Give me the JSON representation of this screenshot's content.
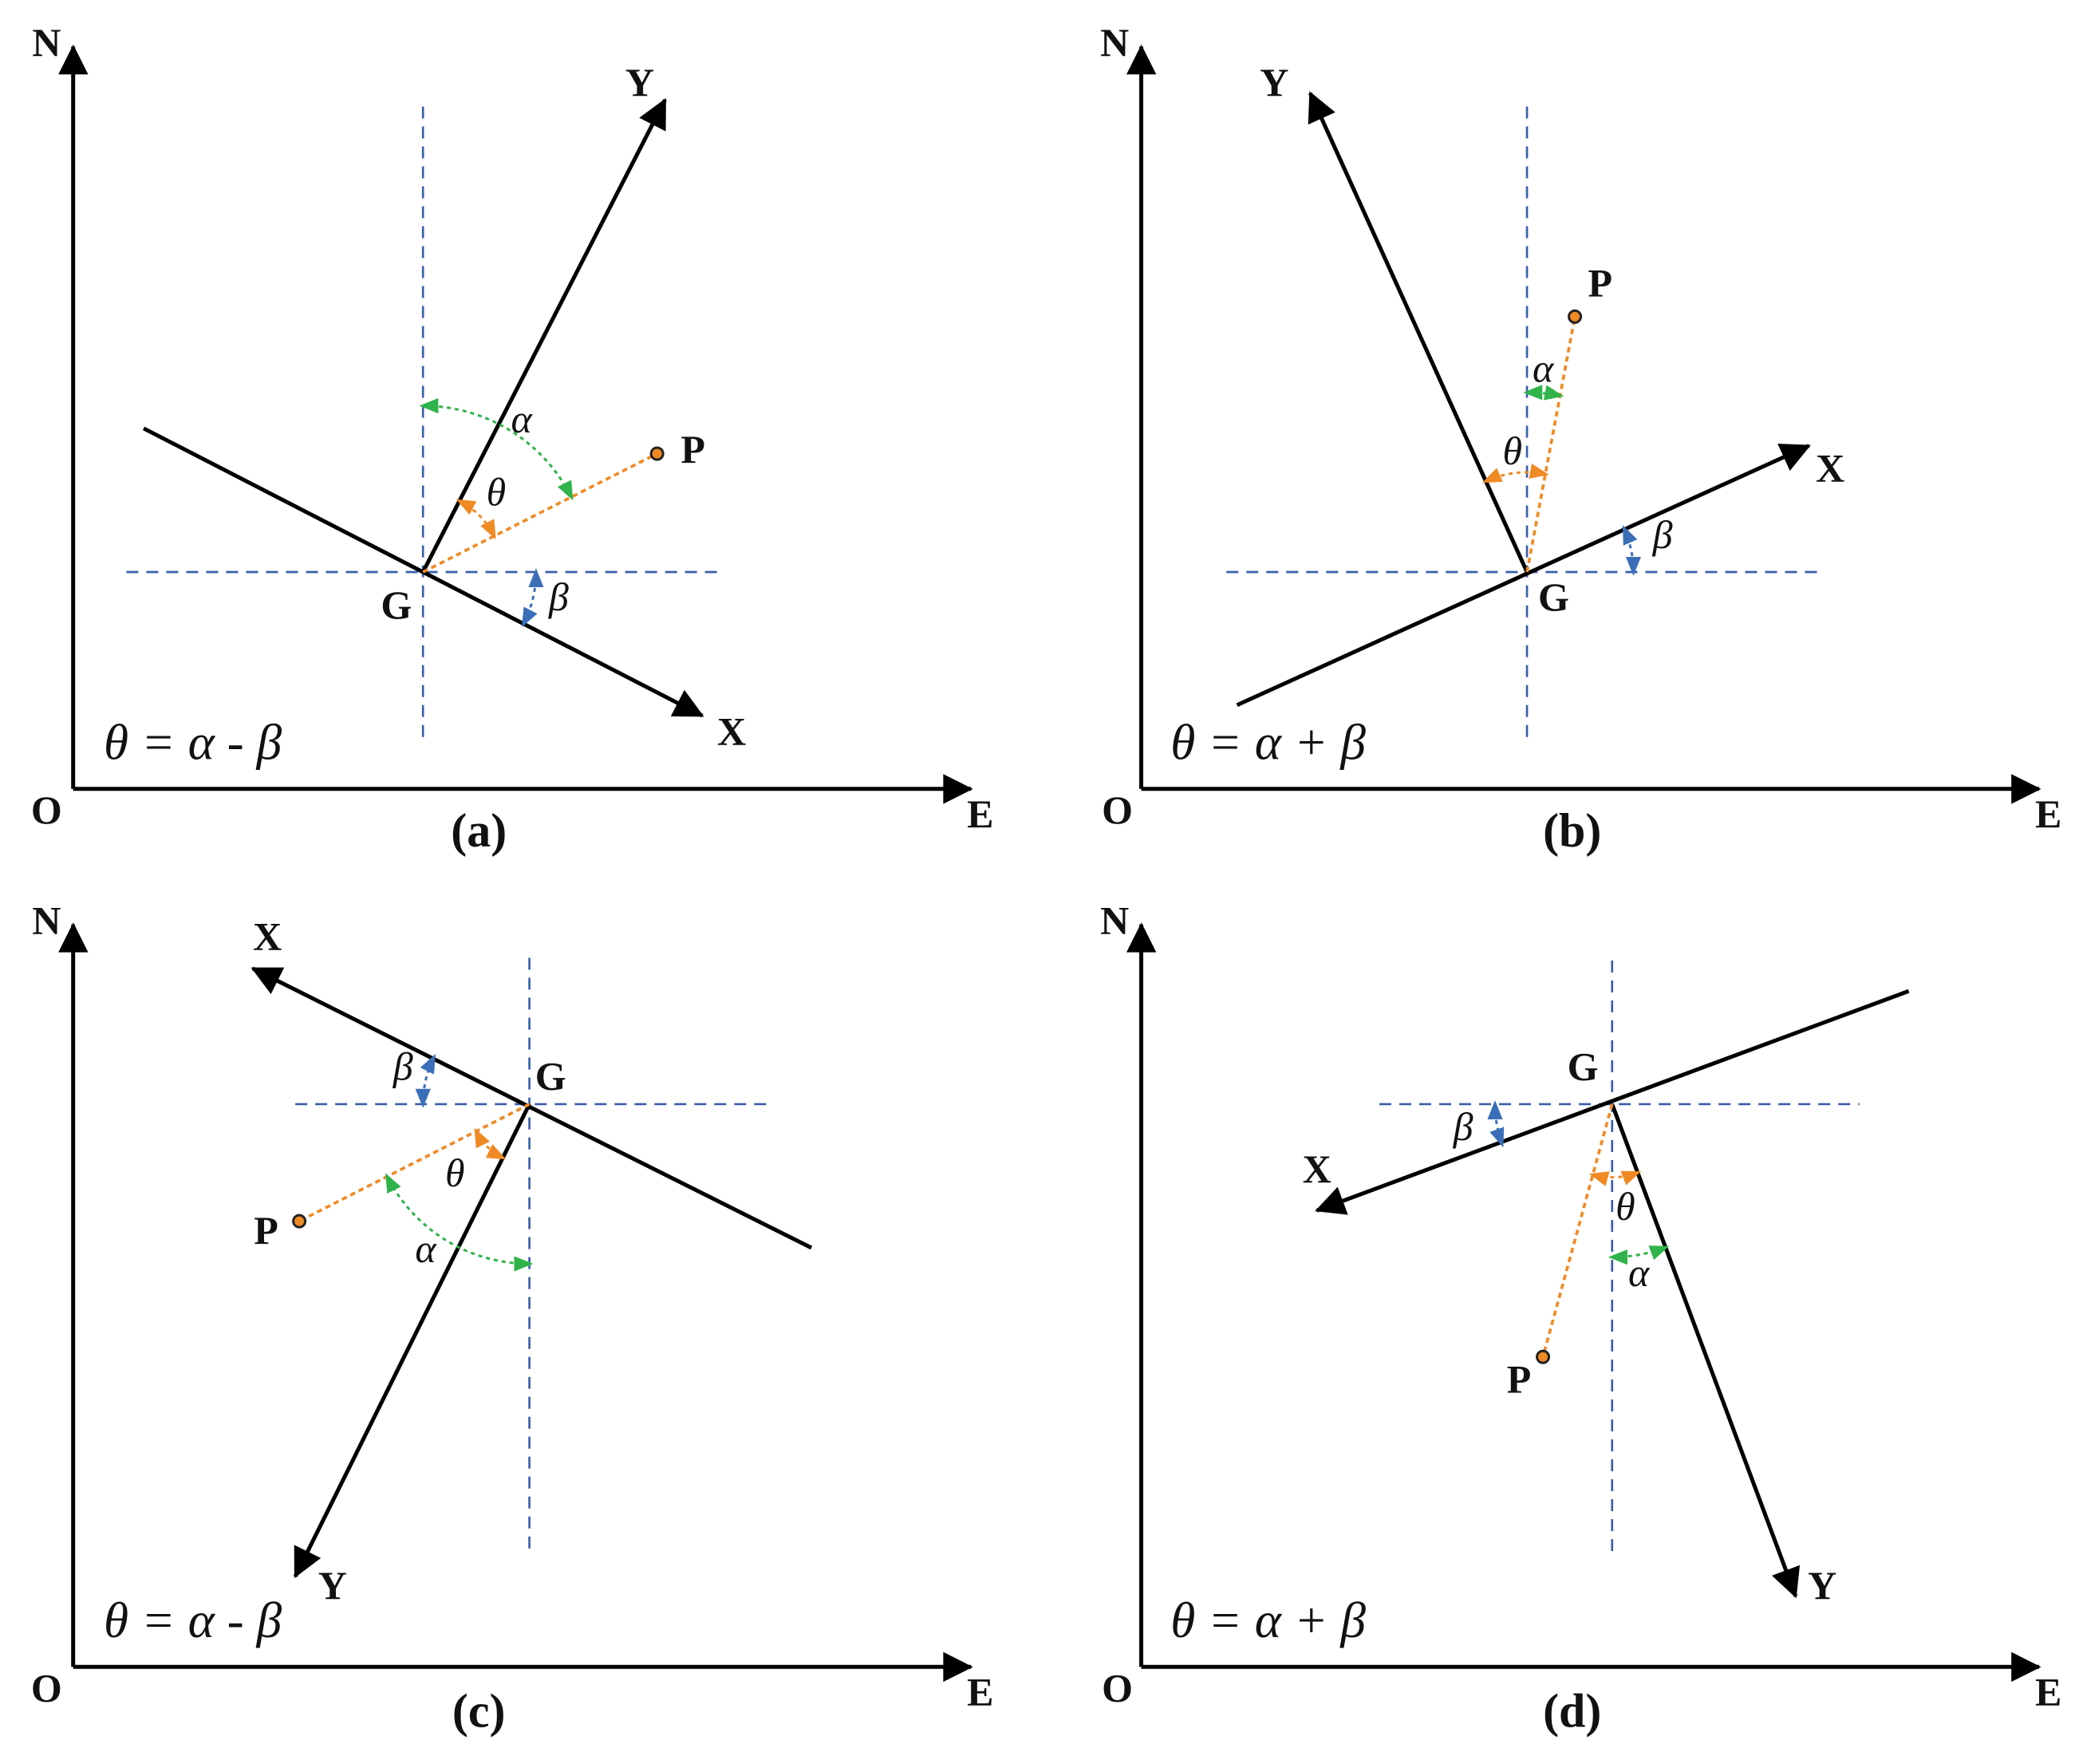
{
  "panels": [
    {
      "caption": "(a)",
      "formula": "θ = α - β",
      "north": "N",
      "east": "E",
      "origin": "O",
      "center": "G",
      "point": "P",
      "x_axis": "X",
      "y_axis": "Y",
      "alpha": "α",
      "beta": "β",
      "theta": "θ"
    },
    {
      "caption": "(b)",
      "formula": "θ = α + β",
      "north": "N",
      "east": "E",
      "origin": "O",
      "center": "G",
      "point": "P",
      "x_axis": "X",
      "y_axis": "Y",
      "alpha": "α",
      "beta": "β",
      "theta": "θ"
    },
    {
      "caption": "(c)",
      "formula": "θ = α - β",
      "north": "N",
      "east": "E",
      "origin": "O",
      "center": "G",
      "point": "P",
      "x_axis": "X",
      "y_axis": "Y",
      "alpha": "α",
      "beta": "β",
      "theta": "θ"
    },
    {
      "caption": "(d)",
      "formula": "θ = α + β",
      "north": "N",
      "east": "E",
      "origin": "O",
      "center": "G",
      "point": "P",
      "x_axis": "X",
      "y_axis": "Y",
      "alpha": "α",
      "beta": "β",
      "theta": "θ"
    }
  ]
}
